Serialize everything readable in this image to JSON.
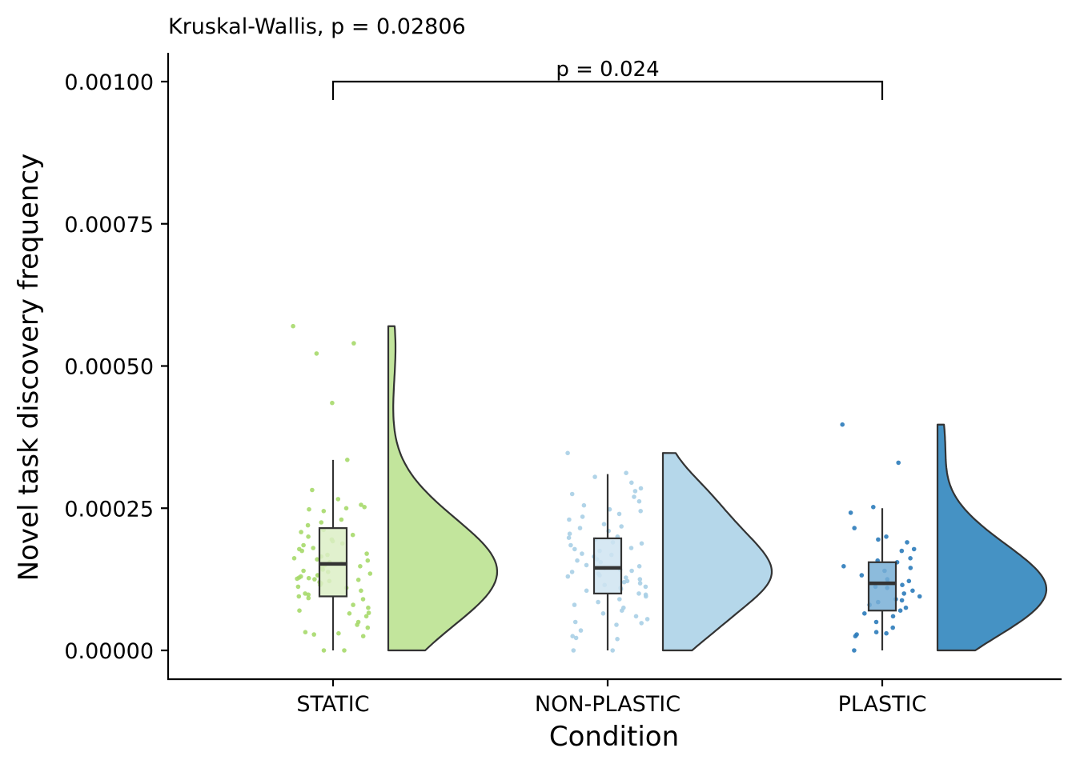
{
  "chart_data": {
    "type": "raincloud",
    "subtitle": "Kruskal-Wallis, p = 0.02806",
    "xlabel": "Condition",
    "ylabel": "Novel task discovery frequency",
    "ylim": [
      -5e-05,
      0.00105
    ],
    "yticks": [
      0,
      0.00025,
      0.0005,
      0.00075,
      0.001
    ],
    "ytick_labels": [
      "0.00000",
      "0.00025",
      "0.00050",
      "0.00075",
      "0.00100"
    ],
    "categories": [
      "STATIC",
      "NON-PLASTIC",
      "PLASTIC"
    ],
    "comparison": {
      "from": "STATIC",
      "to": "PLASTIC",
      "y": 0.001,
      "label": "p = 0.024"
    },
    "series": [
      {
        "colors": {
          "fill": "#c2e59c",
          "point": "#a6d96a",
          "box": "#dcefc5"
        },
        "box": {
          "min": 0.0,
          "q1": 9.5e-05,
          "median": 0.000152,
          "q3": 0.000215,
          "max": 0.000335
        },
        "density_peak": 0.000135,
        "density_top": 0.00057,
        "points": [
          0.00057,
          0.00054,
          0.000522,
          0.000435,
          0.000335,
          0.000282,
          0.000266,
          0.000256,
          0.000252,
          0.00025,
          0.000248,
          0.000245,
          0.00023,
          0.000225,
          0.00022,
          0.000212,
          0.000208,
          0.000203,
          0.0002,
          0.000195,
          0.000192,
          0.000188,
          0.000185,
          0.00018,
          0.000178,
          0.000175,
          0.00017,
          0.000168,
          0.000165,
          0.000162,
          0.00016,
          0.000158,
          0.000155,
          0.000153,
          0.00015,
          0.000148,
          0.000145,
          0.000142,
          0.00014,
          0.000138,
          0.000135,
          0.000132,
          0.00013,
          0.000128,
          0.000127,
          0.000126,
          0.000125,
          0.000124,
          0.000122,
          0.00012,
          0.000118,
          0.000115,
          0.000112,
          0.00011,
          0.000105,
          0.0001,
          9.8e-05,
          9.5e-05,
          9.2e-05,
          9e-05,
          8e-05,
          7.5e-05,
          7e-05,
          6.6e-05,
          6.5e-05,
          6e-05,
          5e-05,
          4.5e-05,
          4e-05,
          3.2e-05,
          3e-05,
          2.8e-05,
          2.5e-05,
          0.0,
          0.0
        ]
      },
      {
        "colors": {
          "fill": "#b5d7ea",
          "point": "#a9cfe5",
          "box": "#cfe4f1"
        },
        "box": {
          "min": 0.0,
          "q1": 0.0001,
          "median": 0.000145,
          "q3": 0.000197,
          "max": 0.00031
        },
        "density_peak": 0.000128,
        "density_top": 0.000347,
        "points": [
          0.000347,
          0.000312,
          0.000305,
          0.000295,
          0.000285,
          0.00028,
          0.000275,
          0.00027,
          0.000262,
          0.000255,
          0.000248,
          0.000245,
          0.00024,
          0.000235,
          0.00023,
          0.000222,
          0.000218,
          0.000215,
          0.00021,
          0.000205,
          0.0002,
          0.000198,
          0.000195,
          0.00019,
          0.000188,
          0.000185,
          0.00018,
          0.000178,
          0.000175,
          0.00017,
          0.000168,
          0.000165,
          0.00016,
          0.000158,
          0.000155,
          0.00015,
          0.000148,
          0.000145,
          0.000142,
          0.00014,
          0.000138,
          0.000135,
          0.000132,
          0.00013,
          0.000128,
          0.000125,
          0.000122,
          0.00012,
          0.000118,
          0.000115,
          0.000112,
          0.00011,
          0.000108,
          0.000105,
          0.0001,
          9.8e-05,
          9.5e-05,
          9e-05,
          8.5e-05,
          8e-05,
          7.5e-05,
          7e-05,
          6.5e-05,
          6e-05,
          5.5e-05,
          5e-05,
          4.8e-05,
          4.5e-05,
          3.5e-05,
          2.5e-05,
          2.2e-05,
          2e-05,
          0.0,
          0.0
        ]
      },
      {
        "colors": {
          "fill": "#4592c4",
          "point": "#2b7bba",
          "box": "#78afd6"
        },
        "box": {
          "min": 0.0,
          "q1": 7e-05,
          "median": 0.000118,
          "q3": 0.000155,
          "max": 0.00025
        },
        "density_peak": 9.5e-05,
        "density_top": 0.000397,
        "points": [
          0.000397,
          0.00033,
          0.000252,
          0.000242,
          0.000215,
          0.000195,
          0.0002,
          0.00019,
          0.000178,
          0.000175,
          0.000162,
          0.000158,
          0.000155,
          0.000148,
          0.000145,
          0.00014,
          0.000132,
          0.000125,
          0.000122,
          0.00012,
          0.000115,
          0.000112,
          0.00011,
          0.000105,
          0.0001,
          9.5e-05,
          9e-05,
          8.8e-05,
          8.5e-05,
          8e-05,
          7.5e-05,
          7e-05,
          6.5e-05,
          6e-05,
          5e-05,
          4e-05,
          3.2e-05,
          3e-05,
          2.8e-05,
          2.5e-05,
          0.0
        ]
      }
    ]
  }
}
